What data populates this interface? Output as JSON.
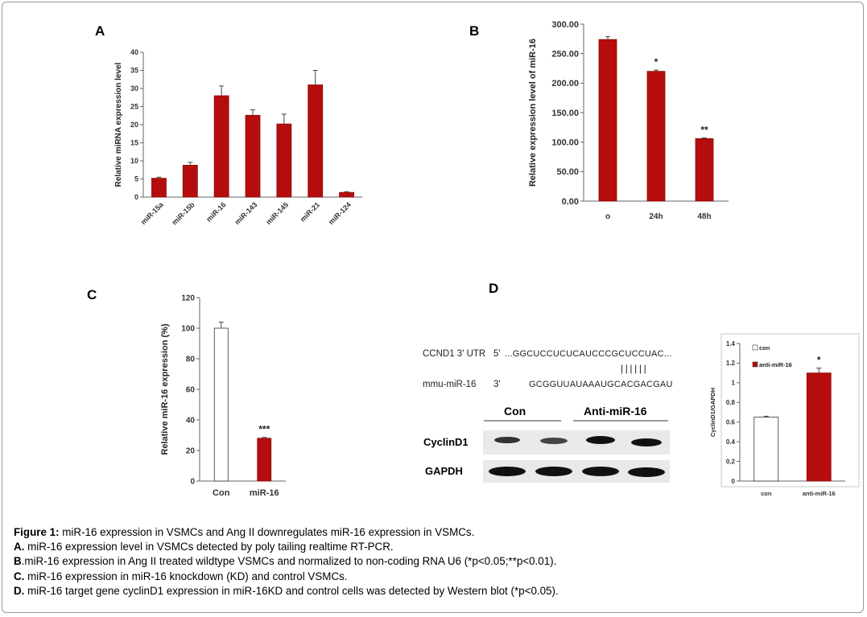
{
  "panels": {
    "A": {
      "letter": "A"
    },
    "B": {
      "letter": "B"
    },
    "C": {
      "letter": "C"
    },
    "D": {
      "letter": "D"
    }
  },
  "colors": {
    "bar_red": "#b50d0d",
    "bar_white": "#ffffff",
    "axis": "#555555"
  },
  "chart_data": [
    {
      "id": "A",
      "type": "bar",
      "ylabel": "Relative miRNA expression level",
      "ylim": [
        0,
        40
      ],
      "yticks": [
        "0",
        "5",
        "10",
        "15",
        "20",
        "25",
        "30",
        "35",
        "40"
      ],
      "categories": [
        "miR-15a",
        "miR-15b",
        "miR-16",
        "miR-143",
        "miR-145",
        "miR-21",
        "miR-124"
      ],
      "values": [
        5.2,
        8.8,
        28.0,
        22.6,
        20.2,
        31.0,
        1.3
      ],
      "errors": [
        0.3,
        0.8,
        2.7,
        1.5,
        2.7,
        4.0,
        0.2
      ],
      "annotations": [
        "",
        "",
        "",
        "",
        "",
        "",
        ""
      ]
    },
    {
      "id": "B",
      "type": "bar",
      "ylabel": "Relative expression level of miR-16",
      "ylim": [
        0,
        300
      ],
      "yticks": [
        "0.00",
        "50.00",
        "100.00",
        "150.00",
        "200.00",
        "250.00",
        "300.00"
      ],
      "categories": [
        "o",
        "24h",
        "48h"
      ],
      "values": [
        274,
        220,
        106
      ],
      "errors": [
        5,
        2,
        1
      ],
      "annotations": [
        "",
        "*",
        "**"
      ]
    },
    {
      "id": "C",
      "type": "bar",
      "ylabel": "Relative miR-16 expression (%)",
      "ylim": [
        0,
        120
      ],
      "yticks": [
        "0",
        "20",
        "40",
        "60",
        "80",
        "100",
        "120"
      ],
      "categories": [
        "Con",
        "miR-16"
      ],
      "values": [
        100,
        28
      ],
      "errors": [
        4,
        0.6
      ],
      "annotations": [
        "",
        "***"
      ],
      "fills": [
        "white",
        "red"
      ]
    },
    {
      "id": "D",
      "type": "bar",
      "ylabel": "CyclinD1/GAPDH",
      "ylim": [
        0,
        1.4
      ],
      "yticks": [
        "0",
        "0.2",
        "0.4",
        "0.6",
        "0.8",
        "1",
        "1.2",
        "1.4"
      ],
      "categories": [
        "con",
        "anti-miR-16"
      ],
      "values": [
        0.65,
        1.1
      ],
      "errors": [
        0.01,
        0.05
      ],
      "annotations": [
        "",
        "*"
      ],
      "fills": [
        "white",
        "red"
      ],
      "legend": [
        "con",
        "anti-miR-16"
      ],
      "legend_position": "top-left"
    }
  ],
  "sequence": {
    "ccnd1_label": "CCND1 3' UTR",
    "ccnd1_prime": "5'",
    "ccnd1_seq": "...GGCUCCUCUCAUCCCGCUCCUAC...",
    "pairing": "||||||",
    "mir_label": "mmu-miR-16",
    "mir_prime": "3'",
    "mir_seq": "GCGGUUAUAAAUGCACGACGAU"
  },
  "blot": {
    "group1": "Con",
    "group2": "Anti-miR-16",
    "row1": "CyclinD1",
    "row2": "GAPDH"
  },
  "caption": {
    "title_bold": "Figure 1:",
    "title_rest": " miR-16 expression in VSMCs and Ang II downregulates miR-16 expression in VSMCs.",
    "a_bold": "A.",
    "a_rest": " miR-16 expression level in VSMCs detected by poly tailing realtime RT-PCR.",
    "b_bold": "B",
    "b_rest": ".miR-16 expression in Ang II treated wildtype VSMCs and normalized to non-coding RNA U6 (*p<0.05;**p<0.01).",
    "c_bold": "C.",
    "c_rest": " miR-16 expression in miR-16 knockdown (KD) and control VSMCs.",
    "d_bold": "D.",
    "d_rest": " miR-16 target gene cyclinD1 expression in miR-16KD and control cells was detected by Western blot (*p<0.05)."
  }
}
